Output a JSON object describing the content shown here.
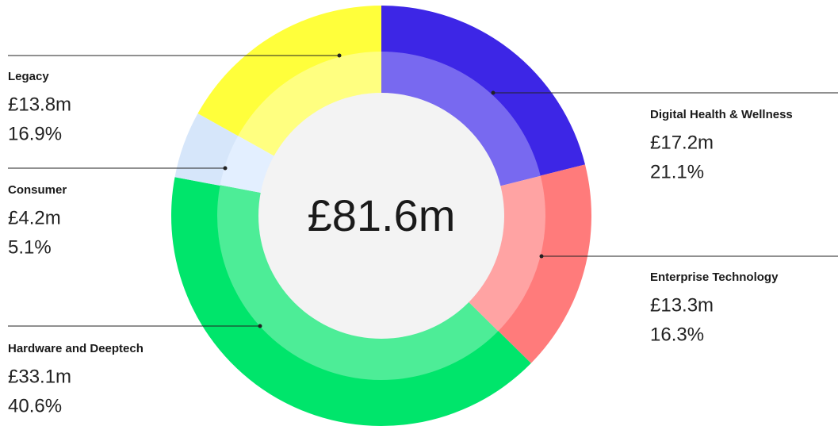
{
  "chart_data": {
    "type": "pie",
    "categories": [
      "Digital Health & Wellness",
      "Enterprise Technology",
      "Hardware and Deeptech",
      "Consumer",
      "Legacy"
    ],
    "values": [
      17.2,
      13.3,
      33.1,
      4.2,
      13.8
    ],
    "value_labels": [
      "£17.2m",
      "£13.3m",
      "£33.1m",
      "£4.2m",
      "£13.8m"
    ],
    "percents": [
      21.1,
      16.3,
      40.6,
      5.1,
      16.9
    ],
    "percent_labels": [
      "21.1%",
      "16.3%",
      "40.6%",
      "5.1%",
      "16.9%"
    ],
    "colors": [
      "#3d26e6",
      "#ff7b7b",
      "#00e56b",
      "#d6e6fa",
      "#ffff3b"
    ],
    "inner_colors": [
      "#7869f0",
      "#ffa3a3",
      "#4ded97",
      "#e3efff",
      "#ffff80"
    ],
    "center_label": "£81.6m"
  }
}
